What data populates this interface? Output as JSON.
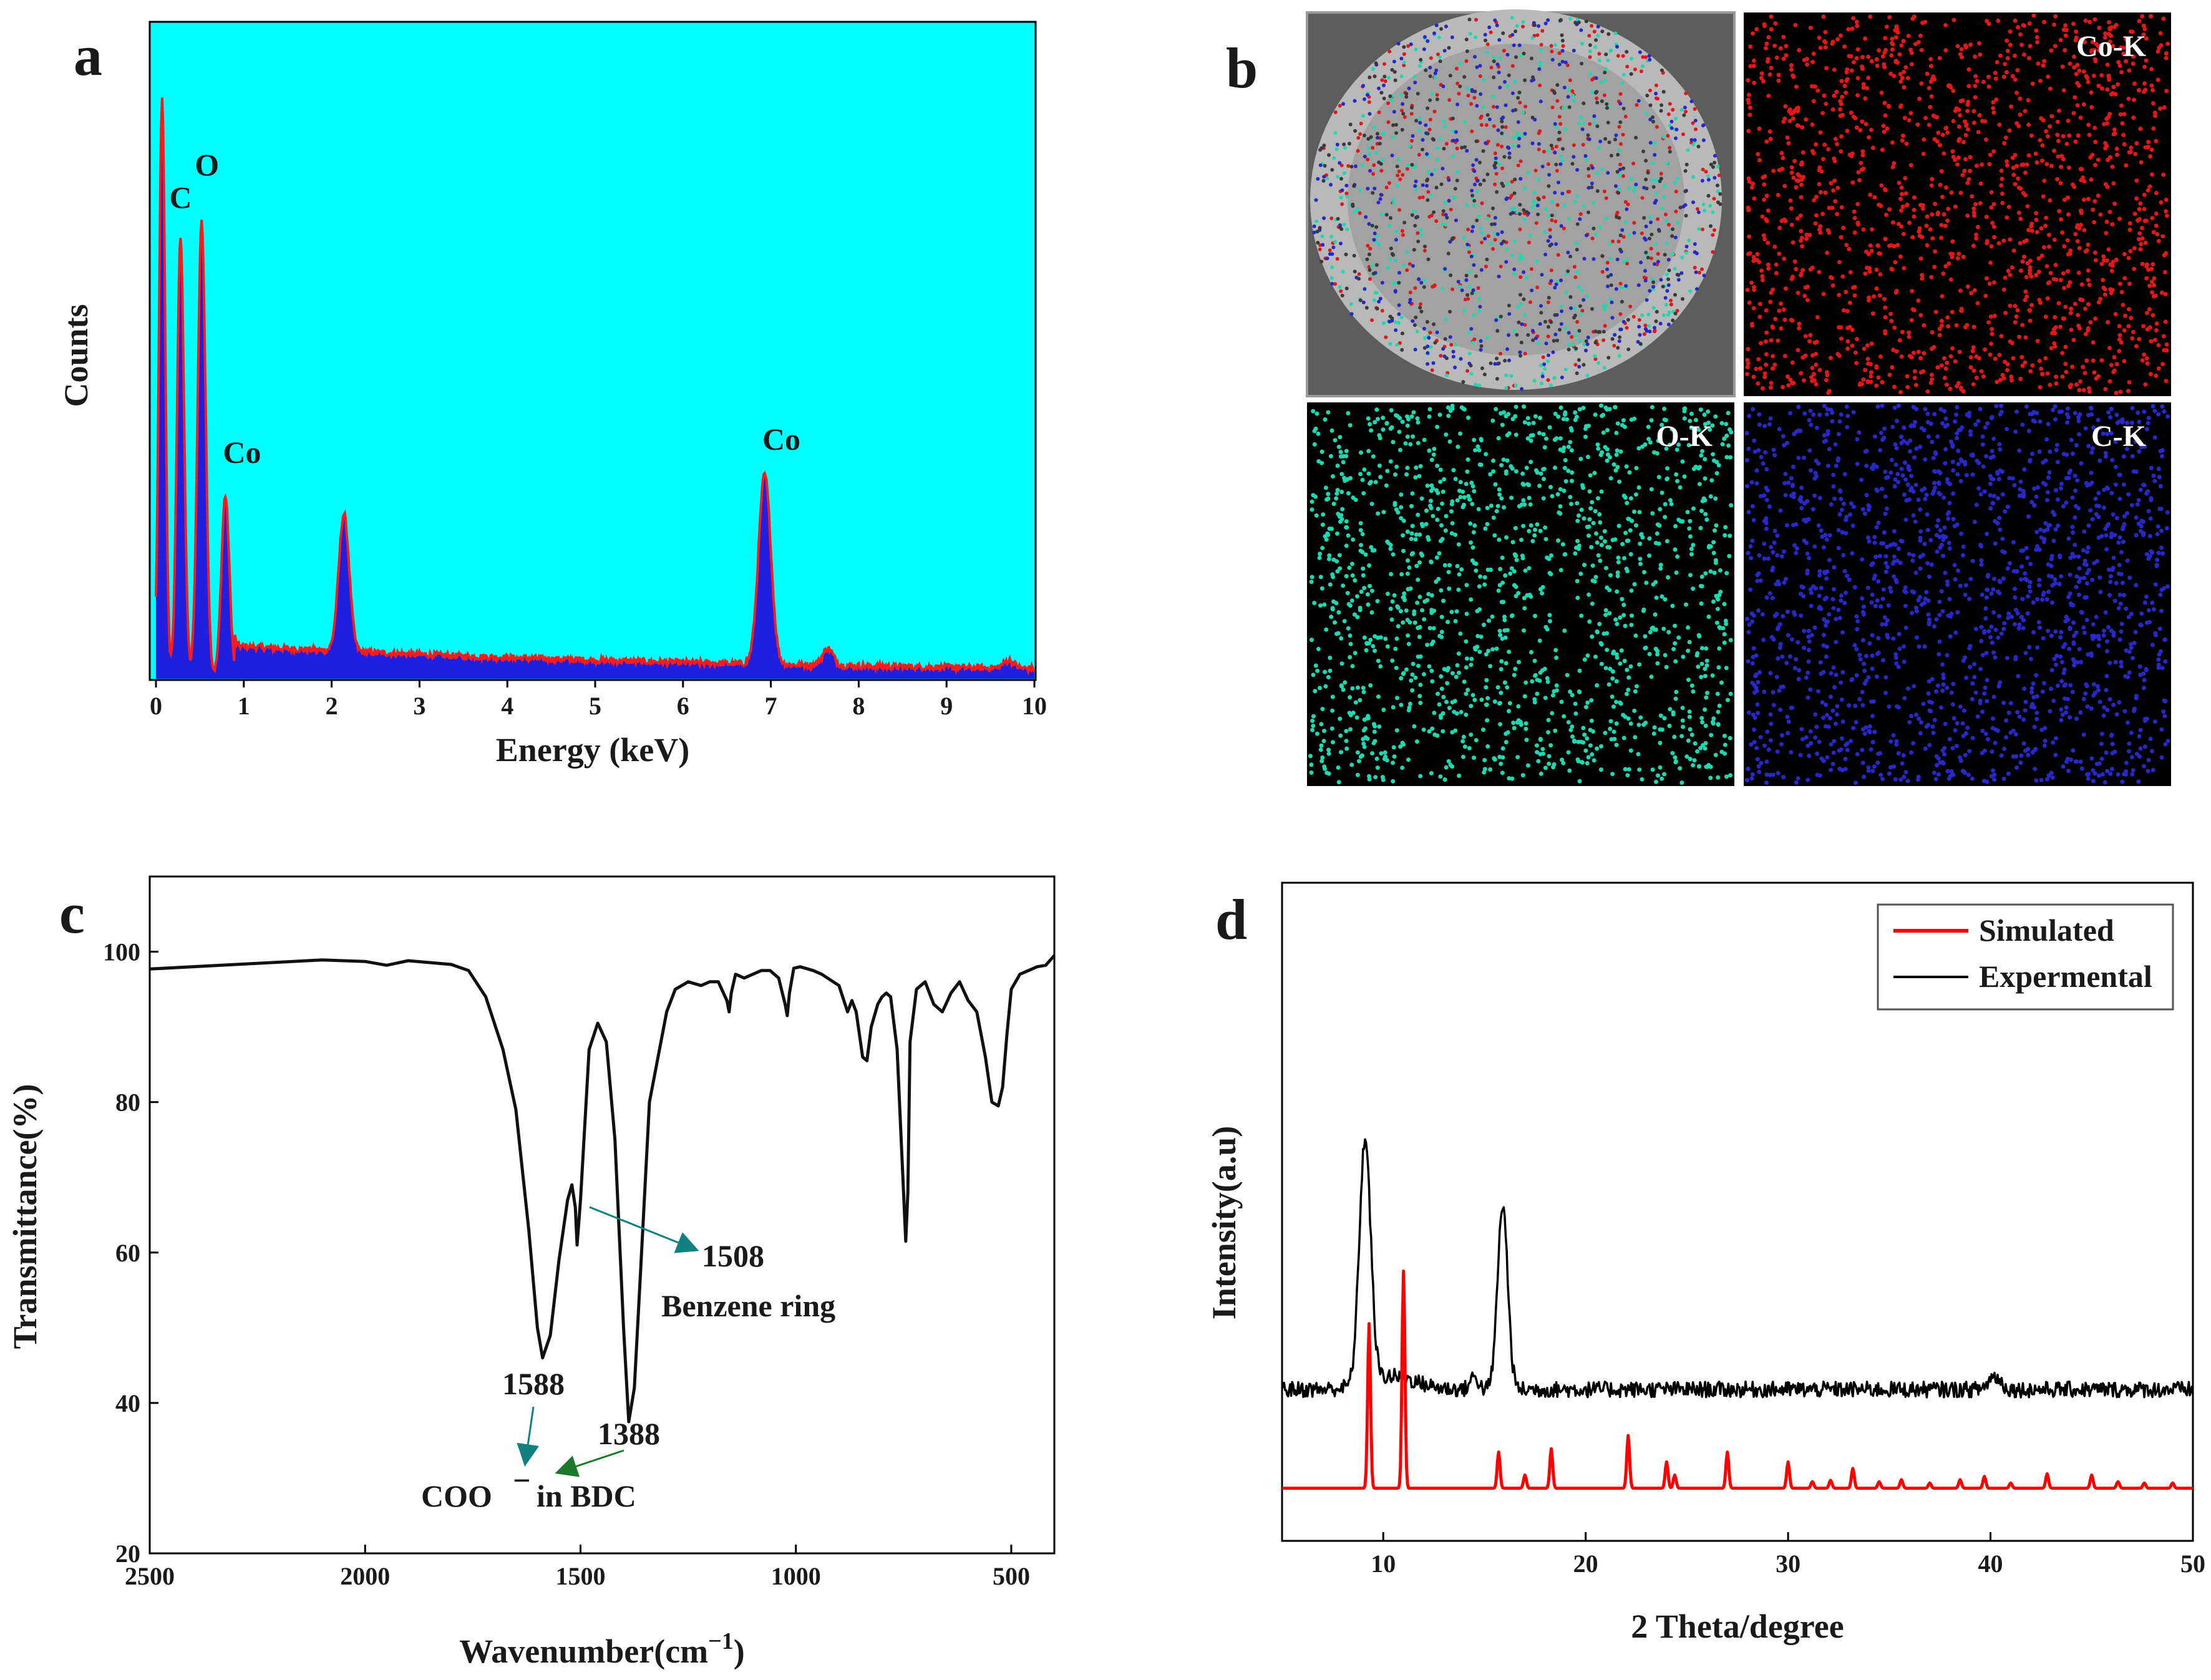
{
  "figure": {
    "panel_labels": [
      "a",
      "b",
      "c",
      "d"
    ]
  },
  "colors": {
    "eds_background": "#00ffff",
    "eds_fill": "#1f1fe0",
    "eds_line": "#ff1a1a",
    "co_map": "#e01818",
    "o_map": "#1fd8b0",
    "c_map": "#2828c8",
    "ir_line": "#111111",
    "simulated": "#ff0000",
    "experimental": "#000000",
    "annotation_arrow": "#118080"
  },
  "chart_data": [
    {
      "panel": "a",
      "type": "area",
      "title": "",
      "xlabel": "Energy (keV)",
      "ylabel": "Counts",
      "xlim": [
        0,
        10
      ],
      "ylim": [
        0,
        100
      ],
      "xticks": [
        "0",
        "1",
        "2",
        "3",
        "4",
        "5",
        "6",
        "7",
        "8",
        "9",
        "10"
      ],
      "peaks": [
        {
          "x": 0.07,
          "height": 88.0,
          "width": 0.035
        },
        {
          "x": 0.28,
          "height": 67.0,
          "width": 0.04
        },
        {
          "x": 0.52,
          "height": 69.5,
          "width": 0.045
        },
        {
          "x": 0.79,
          "height": 27.5,
          "width": 0.045
        },
        {
          "x": 2.14,
          "height": 21.0,
          "width": 0.06
        },
        {
          "x": 6.93,
          "height": 29.0,
          "width": 0.07
        },
        {
          "x": 7.65,
          "height": 2.6,
          "width": 0.06
        },
        {
          "x": 9.71,
          "height": 1.2,
          "width": 0.06
        }
      ],
      "background_level": 4.0,
      "annotations": [
        {
          "text": "C",
          "x": 0.28,
          "y": 72
        },
        {
          "text": "O",
          "x": 0.58,
          "y": 77
        },
        {
          "text": "Co",
          "x": 0.98,
          "y": 33
        },
        {
          "text": "Co",
          "x": 7.12,
          "y": 35
        }
      ]
    },
    {
      "panel": "c",
      "type": "line",
      "title": "",
      "xlabel": "Wavenumber(cm",
      "xlabel_sup": "−1",
      "xlabel_end": ")",
      "ylabel": "Transmittance(%)",
      "xlim": [
        2500,
        400
      ],
      "ylim": [
        20,
        110
      ],
      "xticks": [
        "2500",
        "2000",
        "1500",
        "1000",
        "500"
      ],
      "yticks": [
        "20",
        "40",
        "60",
        "80",
        "100"
      ],
      "x": [
        2500,
        2300,
        2100,
        2000,
        1950,
        1900,
        1800,
        1760,
        1720,
        1680,
        1650,
        1620,
        1600,
        1588,
        1570,
        1550,
        1530,
        1520,
        1512,
        1508,
        1500,
        1480,
        1460,
        1440,
        1420,
        1400,
        1388,
        1375,
        1360,
        1340,
        1300,
        1280,
        1250,
        1220,
        1200,
        1180,
        1160,
        1155,
        1150,
        1140,
        1120,
        1100,
        1080,
        1060,
        1040,
        1025,
        1020,
        1015,
        1005,
        990,
        960,
        940,
        900,
        880,
        870,
        860,
        845,
        835,
        825,
        810,
        800,
        790,
        780,
        765,
        750,
        745,
        740,
        735,
        720,
        700,
        680,
        660,
        640,
        620,
        600,
        580,
        560,
        545,
        530,
        520,
        510,
        500,
        480,
        460,
        440,
        420,
        400
      ],
      "y": [
        97.7,
        98.3,
        98.9,
        98.7,
        98.2,
        98.8,
        98.3,
        97.5,
        94.0,
        87.0,
        79.0,
        63.0,
        50.0,
        46.0,
        49.0,
        59.0,
        67.0,
        69.0,
        66.0,
        61.0,
        67.0,
        87.0,
        90.5,
        88.0,
        75.0,
        50.0,
        37.5,
        42.0,
        58.0,
        80.0,
        92.0,
        95.0,
        96.0,
        95.5,
        96.0,
        96.0,
        93.5,
        92.0,
        94.5,
        97.0,
        96.5,
        97.0,
        97.5,
        97.5,
        96.5,
        93.0,
        91.5,
        94.5,
        97.8,
        98.0,
        97.5,
        97.0,
        95.5,
        92.0,
        93.5,
        92.0,
        86.0,
        85.5,
        90.0,
        93.0,
        94.0,
        94.5,
        94.0,
        87.0,
        68.0,
        61.5,
        68.0,
        88.0,
        95.0,
        96.0,
        93.0,
        92.0,
        94.5,
        96.0,
        93.5,
        92.0,
        86.0,
        80.0,
        79.5,
        82.0,
        89.0,
        95.0,
        97.0,
        97.5,
        98.0,
        98.2,
        99.5
      ],
      "annotations": [
        {
          "text": "1508",
          "x": 1300,
          "y": 60
        },
        {
          "text": "Benzene ring",
          "x": 1450,
          "y": 55
        },
        {
          "text": "1588",
          "x": 1520,
          "y": 40
        },
        {
          "text": "1388",
          "x": 1340,
          "y": 33.5
        },
        {
          "text": "COO",
          "x": 1700,
          "y": 25
        },
        {
          "text": "−",
          "x": 1560,
          "y": 27
        },
        {
          "text": "in BDC",
          "x": 1540,
          "y": 25
        }
      ]
    },
    {
      "panel": "d",
      "type": "line",
      "title": "",
      "xlabel": "2 Theta/degree",
      "ylabel": "Intensity(a.u)",
      "xlim": [
        5,
        50
      ],
      "ylim": [
        0,
        100
      ],
      "xticks": [
        "10",
        "20",
        "30",
        "40",
        "50"
      ],
      "legend": {
        "position": "top-right",
        "entries": [
          "Simulated",
          "Expermental"
        ]
      },
      "series": [
        {
          "name": "Simulated",
          "baseline": 8,
          "peaks": [
            {
              "x": 9.3,
              "height": 25
            },
            {
              "x": 11.0,
              "height": 33
            },
            {
              "x": 15.7,
              "height": 5.5
            },
            {
              "x": 17.0,
              "height": 2
            },
            {
              "x": 18.3,
              "height": 6
            },
            {
              "x": 22.1,
              "height": 8
            },
            {
              "x": 24.0,
              "height": 4
            },
            {
              "x": 24.4,
              "height": 2
            },
            {
              "x": 27.0,
              "height": 5.5
            },
            {
              "x": 30.0,
              "height": 4
            },
            {
              "x": 31.2,
              "height": 1
            },
            {
              "x": 32.1,
              "height": 1.2
            },
            {
              "x": 33.2,
              "height": 3
            },
            {
              "x": 34.5,
              "height": 1
            },
            {
              "x": 35.6,
              "height": 1.3
            },
            {
              "x": 37.0,
              "height": 0.8
            },
            {
              "x": 38.5,
              "height": 1.3
            },
            {
              "x": 39.7,
              "height": 1.8
            },
            {
              "x": 41.0,
              "height": 0.8
            },
            {
              "x": 42.8,
              "height": 2.2
            },
            {
              "x": 45.0,
              "height": 2
            },
            {
              "x": 46.3,
              "height": 1
            },
            {
              "x": 47.6,
              "height": 0.8
            },
            {
              "x": 49.0,
              "height": 0.8
            }
          ]
        },
        {
          "name": "Expermental",
          "baseline": 23,
          "peaks": [
            {
              "x": 9.1,
              "height": 37,
              "width": 0.28
            },
            {
              "x": 10.4,
              "height": 2,
              "width": 1.2
            },
            {
              "x": 14.5,
              "height": 2,
              "width": 0.2
            },
            {
              "x": 15.9,
              "height": 28,
              "width": 0.25
            },
            {
              "x": 40.2,
              "height": 2,
              "width": 0.3
            }
          ]
        }
      ]
    }
  ],
  "eds_maps": {
    "labels": [
      "Co-K",
      "O-K",
      "C-K"
    ]
  }
}
